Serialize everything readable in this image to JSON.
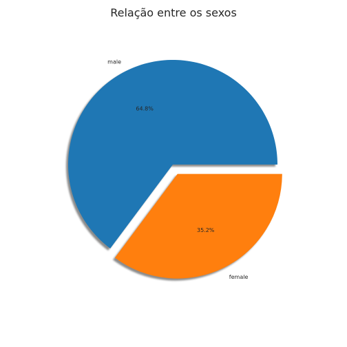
{
  "chart_data": {
    "type": "pie",
    "title": "Relação entre os sexos",
    "labels": [
      "male",
      "female"
    ],
    "values": [
      64.8,
      35.2
    ],
    "pct_labels": [
      "64.8%",
      "35.2%"
    ],
    "colors": [
      "#1f77b4",
      "#ff7f0e"
    ],
    "explode": [
      0,
      0.1
    ],
    "shadow": true,
    "start_angle_deg": 0
  }
}
